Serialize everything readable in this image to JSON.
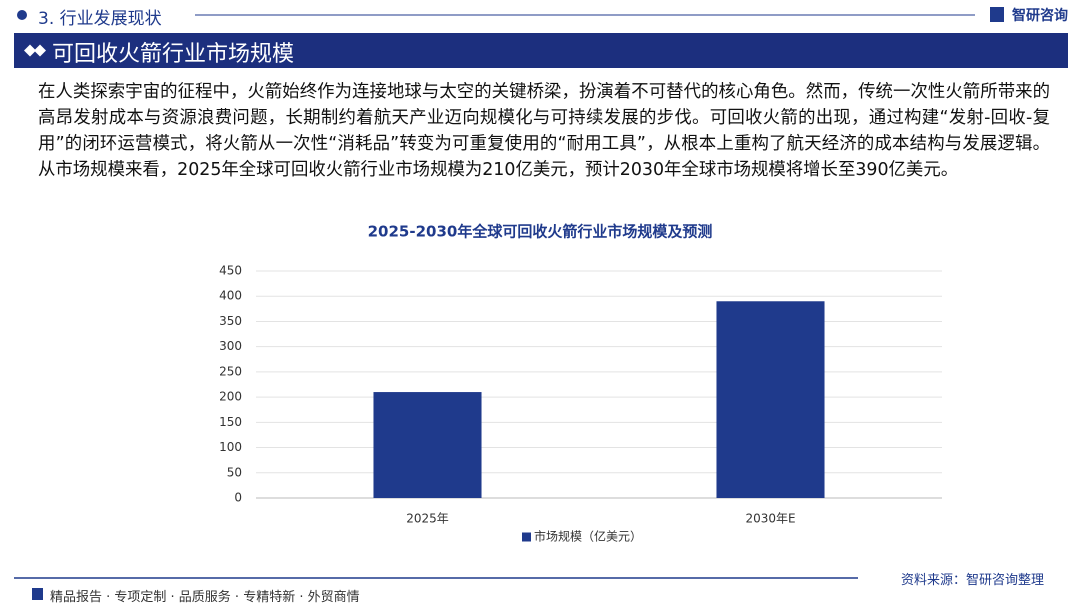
{
  "header": {
    "section": "3. 行业发展现状",
    "logo": "智研咨询",
    "title": "可回收火箭行业市场规模"
  },
  "paragraph": "在人类探索宇宙的征程中，火箭始终作为连接地球与太空的关键桥梁，扮演着不可替代的核心角色。然而，传统一次性火箭所带来的高昂发射成本与资源浪费问题，长期制约着航天产业迈向规模化与可持续发展的步伐。可回收火箭的出现，通过构建“发射-回收-复用”的闭环运营模式，将火箭从一次性“消耗品”转变为可重复使用的“耐用工具”，从根本上重构了航天经济的成本结构与发展逻辑。从市场规模来看，2025年全球可回收火箭行业市场规模为210亿美元，预计2030年全球市场规模将增长至390亿美元。",
  "chart_data": {
    "type": "bar",
    "title": "2025-2030年全球可回收火箭行业市场规模及预测",
    "categories": [
      "2025年",
      "2030年E"
    ],
    "series": [
      {
        "name": "市场规模（亿美元）",
        "color": "#1f3a8c",
        "values": [
          210,
          390
        ]
      }
    ],
    "ylim": [
      0,
      450
    ],
    "yticks": [
      0,
      50,
      100,
      150,
      200,
      250,
      300,
      350,
      400,
      450
    ],
    "grid": true,
    "legend": "bottom"
  },
  "source": "资料来源：智研咨询整理",
  "footer": "精品报告 · 专项定制 · 品质服务 · 专精特新 · 外贸商情"
}
